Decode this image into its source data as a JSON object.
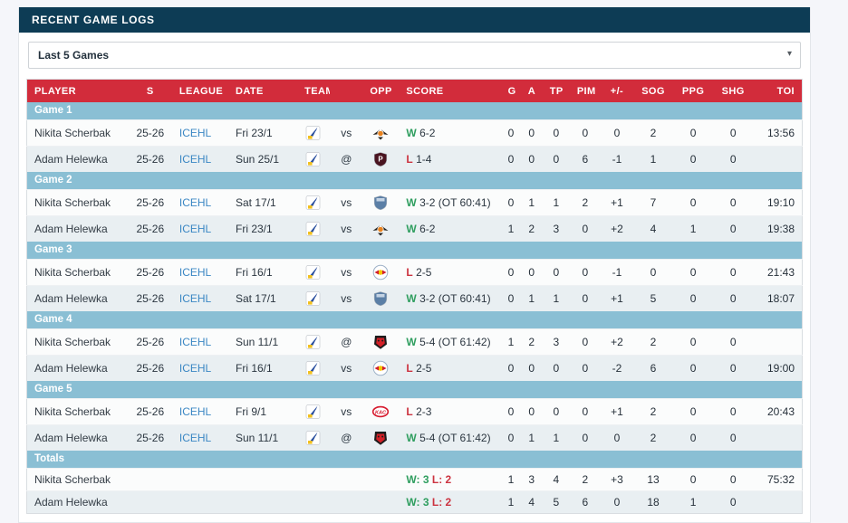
{
  "header": {
    "title": "RECENT GAME LOGS"
  },
  "filter": {
    "value": "Last 5 Games",
    "caret": "▾"
  },
  "colors": {
    "navy": "#0d3c55",
    "accent_red": "#d22c3b",
    "group_blue": "#8abfd4",
    "win_green": "#2f9e5f",
    "loss_red": "#cc3340",
    "link_blue": "#3b87c4"
  },
  "logos": {
    "bird-crest": {
      "shape": "crest",
      "colors": [
        "#ffffff",
        "#2a4f9e",
        "#f2c01e"
      ]
    },
    "winged-eagle": {
      "shape": "wings",
      "colors": [
        "#26231f",
        "#e8821e"
      ]
    },
    "dark-shield-p": {
      "shape": "shield",
      "colors": [
        "#4a1420",
        "#ffffff"
      ],
      "text": "P"
    },
    "blue-crest": {
      "shape": "shield",
      "colors": [
        "#5b7fa6",
        "#d7e2ee"
      ],
      "text": ""
    },
    "red-bulls": {
      "shape": "circle-bulls",
      "colors": [
        "#ffffff",
        "#f5c400",
        "#d01f2e"
      ]
    },
    "red-wolf": {
      "shape": "beast",
      "colors": [
        "#1c1c1c",
        "#d42027"
      ]
    },
    "kac-badge": {
      "shape": "oval",
      "colors": [
        "#d6182c",
        "#ffffff"
      ],
      "text": "KAC"
    }
  },
  "table": {
    "columns": [
      "PLAYER",
      "S",
      "LEAGUE",
      "DATE",
      "TEAM",
      "",
      "OPP",
      "SCORE",
      "G",
      "A",
      "TP",
      "PIM",
      "+/-",
      "SOG",
      "PPG",
      "SHG",
      "TOI"
    ],
    "groups": [
      {
        "label": "Game 1",
        "rows": [
          {
            "player": "Nikita Scherbak",
            "season": "25-26",
            "league": "ICEHL",
            "date": "Fri 23/1",
            "team_logo": "bird-crest",
            "venue": "vs",
            "opp_logo": "winged-eagle",
            "score": {
              "result": "W",
              "text": "6-2"
            },
            "stats": {
              "g": "0",
              "a": "0",
              "tp": "0",
              "pim": "0",
              "pm": "0",
              "sog": "2",
              "ppg": "0",
              "shg": "0",
              "toi": "13:56"
            }
          },
          {
            "player": "Adam Helewka",
            "season": "25-26",
            "league": "ICEHL",
            "date": "Sun 25/1",
            "team_logo": "bird-crest",
            "venue": "@",
            "opp_logo": "dark-shield-p",
            "score": {
              "result": "L",
              "text": "1-4"
            },
            "stats": {
              "g": "0",
              "a": "0",
              "tp": "0",
              "pim": "6",
              "pm": "-1",
              "sog": "1",
              "ppg": "0",
              "shg": "0",
              "toi": ""
            }
          }
        ]
      },
      {
        "label": "Game 2",
        "rows": [
          {
            "player": "Nikita Scherbak",
            "season": "25-26",
            "league": "ICEHL",
            "date": "Sat 17/1",
            "team_logo": "bird-crest",
            "venue": "vs",
            "opp_logo": "blue-crest",
            "score": {
              "result": "W",
              "text": "3-2 (OT 60:41)"
            },
            "stats": {
              "g": "0",
              "a": "1",
              "tp": "1",
              "pim": "2",
              "pm": "+1",
              "sog": "7",
              "ppg": "0",
              "shg": "0",
              "toi": "19:10"
            }
          },
          {
            "player": "Adam Helewka",
            "season": "25-26",
            "league": "ICEHL",
            "date": "Fri 23/1",
            "team_logo": "bird-crest",
            "venue": "vs",
            "opp_logo": "winged-eagle",
            "score": {
              "result": "W",
              "text": "6-2"
            },
            "stats": {
              "g": "1",
              "a": "2",
              "tp": "3",
              "pim": "0",
              "pm": "+2",
              "sog": "4",
              "ppg": "1",
              "shg": "0",
              "toi": "19:38"
            }
          }
        ]
      },
      {
        "label": "Game 3",
        "rows": [
          {
            "player": "Nikita Scherbak",
            "season": "25-26",
            "league": "ICEHL",
            "date": "Fri 16/1",
            "team_logo": "bird-crest",
            "venue": "vs",
            "opp_logo": "red-bulls",
            "score": {
              "result": "L",
              "text": "2-5"
            },
            "stats": {
              "g": "0",
              "a": "0",
              "tp": "0",
              "pim": "0",
              "pm": "-1",
              "sog": "0",
              "ppg": "0",
              "shg": "0",
              "toi": "21:43"
            }
          },
          {
            "player": "Adam Helewka",
            "season": "25-26",
            "league": "ICEHL",
            "date": "Sat 17/1",
            "team_logo": "bird-crest",
            "venue": "vs",
            "opp_logo": "blue-crest",
            "score": {
              "result": "W",
              "text": "3-2 (OT 60:41)"
            },
            "stats": {
              "g": "0",
              "a": "1",
              "tp": "1",
              "pim": "0",
              "pm": "+1",
              "sog": "5",
              "ppg": "0",
              "shg": "0",
              "toi": "18:07"
            }
          }
        ]
      },
      {
        "label": "Game 4",
        "rows": [
          {
            "player": "Nikita Scherbak",
            "season": "25-26",
            "league": "ICEHL",
            "date": "Sun 11/1",
            "team_logo": "bird-crest",
            "venue": "@",
            "opp_logo": "red-wolf",
            "score": {
              "result": "W",
              "text": "5-4 (OT 61:42)"
            },
            "stats": {
              "g": "1",
              "a": "2",
              "tp": "3",
              "pim": "0",
              "pm": "+2",
              "sog": "2",
              "ppg": "0",
              "shg": "0",
              "toi": ""
            }
          },
          {
            "player": "Adam Helewka",
            "season": "25-26",
            "league": "ICEHL",
            "date": "Fri 16/1",
            "team_logo": "bird-crest",
            "venue": "vs",
            "opp_logo": "red-bulls",
            "score": {
              "result": "L",
              "text": "2-5"
            },
            "stats": {
              "g": "0",
              "a": "0",
              "tp": "0",
              "pim": "0",
              "pm": "-2",
              "sog": "6",
              "ppg": "0",
              "shg": "0",
              "toi": "19:00"
            }
          }
        ]
      },
      {
        "label": "Game 5",
        "rows": [
          {
            "player": "Nikita Scherbak",
            "season": "25-26",
            "league": "ICEHL",
            "date": "Fri 9/1",
            "team_logo": "bird-crest",
            "venue": "vs",
            "opp_logo": "kac-badge",
            "score": {
              "result": "L",
              "text": "2-3"
            },
            "stats": {
              "g": "0",
              "a": "0",
              "tp": "0",
              "pim": "0",
              "pm": "+1",
              "sog": "2",
              "ppg": "0",
              "shg": "0",
              "toi": "20:43"
            }
          },
          {
            "player": "Adam Helewka",
            "season": "25-26",
            "league": "ICEHL",
            "date": "Sun 11/1",
            "team_logo": "bird-crest",
            "venue": "@",
            "opp_logo": "red-wolf",
            "score": {
              "result": "W",
              "text": "5-4 (OT 61:42)"
            },
            "stats": {
              "g": "0",
              "a": "1",
              "tp": "1",
              "pim": "0",
              "pm": "0",
              "sog": "2",
              "ppg": "0",
              "shg": "0",
              "toi": ""
            }
          }
        ]
      },
      {
        "label": "Totals",
        "rows": [
          {
            "player": "Nikita Scherbak",
            "totals": true,
            "score": {
              "w": "W: 3",
              "l": "L: 2"
            },
            "stats": {
              "g": "1",
              "a": "3",
              "tp": "4",
              "pim": "2",
              "pm": "+3",
              "sog": "13",
              "ppg": "0",
              "shg": "0",
              "toi": "75:32"
            }
          },
          {
            "player": "Adam Helewka",
            "totals": true,
            "score": {
              "w": "W: 3",
              "l": "L: 2"
            },
            "stats": {
              "g": "1",
              "a": "4",
              "tp": "5",
              "pim": "6",
              "pm": "0",
              "sog": "18",
              "ppg": "1",
              "shg": "0",
              "toi": ""
            }
          }
        ]
      }
    ]
  }
}
